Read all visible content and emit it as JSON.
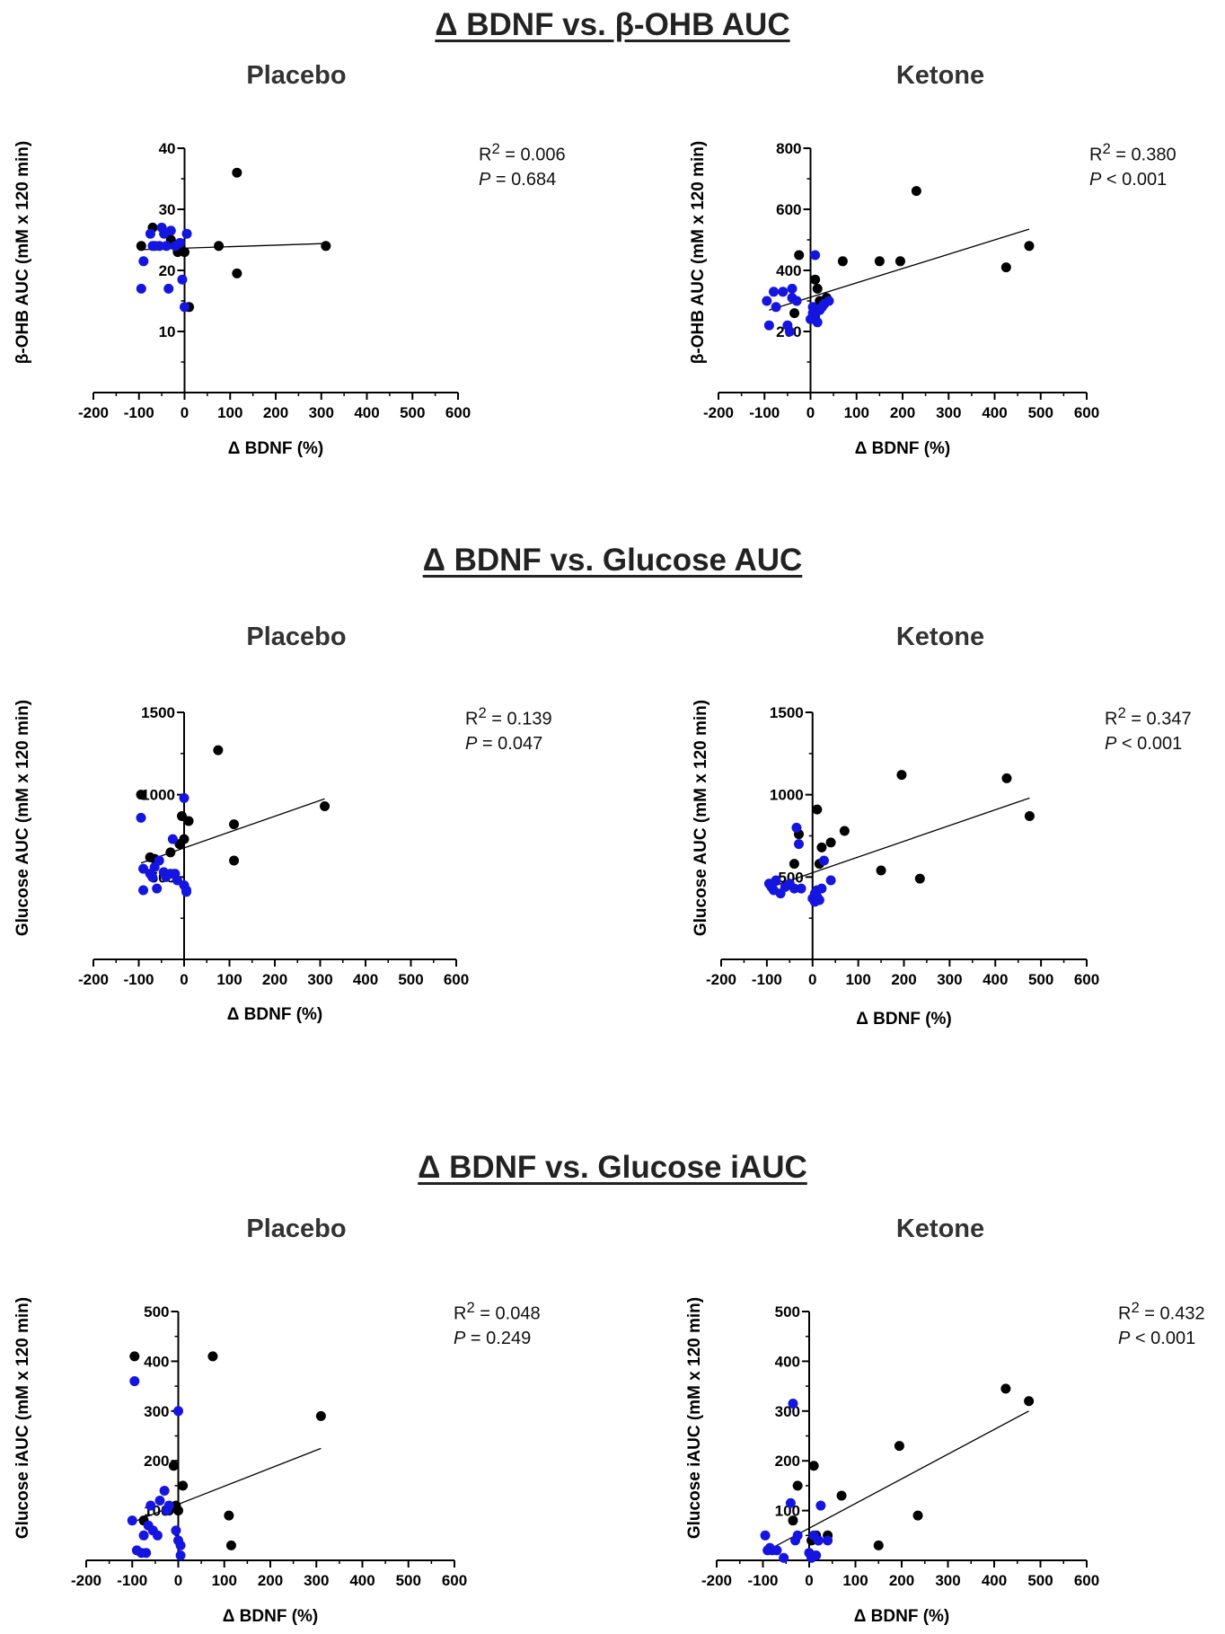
{
  "sections": [
    {
      "title": "Δ BDNF vs. β-OHB AUC"
    },
    {
      "title": "Δ BDNF vs. Glucose AUC"
    },
    {
      "title": "Δ BDNF vs. Glucose iAUC"
    }
  ],
  "colors": {
    "group_a": "#000000",
    "group_b": "#1515e0",
    "axis": "#000000",
    "fit": "#000000"
  },
  "chart_data": [
    {
      "type": "scatter",
      "title": "Placebo",
      "section": "Δ BDNF vs. β-OHB AUC",
      "xlabel": "Δ BDNF (%)",
      "ylabel": "β-OHB AUC (mM x 120 min)",
      "xlim": [
        -200,
        600
      ],
      "ylim": [
        0,
        40
      ],
      "xticks": [
        -200,
        -100,
        0,
        100,
        200,
        300,
        400,
        500,
        600
      ],
      "yticks": [
        10,
        20,
        30,
        40
      ],
      "stats": {
        "r2_label": "R",
        "r2_sup": "2",
        "r2_value": " = 0.006",
        "p_label": "P",
        "p_value": " = 0.684"
      },
      "series": [
        {
          "name": "black",
          "color": "#000000",
          "x": [
            -95,
            -70,
            -30,
            -20,
            -15,
            -10,
            0,
            10,
            75,
            115,
            115,
            310
          ],
          "y": [
            24,
            27,
            25,
            24,
            23,
            24,
            23,
            14,
            24,
            36,
            19.5,
            24
          ]
        },
        {
          "name": "blue",
          "color": "#1515e0",
          "x": [
            -95,
            -90,
            -75,
            -70,
            -65,
            -55,
            -50,
            -45,
            -40,
            -35,
            -30,
            -20,
            -10,
            -5,
            0,
            5
          ],
          "y": [
            17,
            21.5,
            26,
            24,
            24,
            24,
            27,
            26,
            24,
            17,
            26.5,
            24,
            24.5,
            18.5,
            14,
            26
          ]
        }
      ],
      "fit": {
        "x": [
          -95,
          310
        ],
        "y": [
          23.4,
          24.4
        ]
      }
    },
    {
      "type": "scatter",
      "title": "Ketone",
      "section": "Δ BDNF vs. β-OHB AUC",
      "xlabel": "Δ BDNF (%)",
      "ylabel": "β-OHB AUC (mM x 120 min)",
      "xlim": [
        -200,
        600
      ],
      "ylim": [
        0,
        800
      ],
      "xticks": [
        -200,
        -100,
        0,
        100,
        200,
        300,
        400,
        500,
        600
      ],
      "yticks": [
        200,
        400,
        600,
        800
      ],
      "stats": {
        "r2_label": "R",
        "r2_sup": "2",
        "r2_value": " = 0.380",
        "p_label": "P",
        "p_value": " < 0.001"
      },
      "series": [
        {
          "name": "black",
          "color": "#000000",
          "x": [
            -35,
            -25,
            10,
            15,
            20,
            35,
            70,
            150,
            195,
            230,
            425,
            475
          ],
          "y": [
            260,
            450,
            370,
            340,
            300,
            310,
            430,
            430,
            430,
            660,
            410,
            480
          ]
        },
        {
          "name": "blue",
          "color": "#1515e0",
          "x": [
            -95,
            -90,
            -80,
            -75,
            -60,
            -50,
            -45,
            -40,
            -40,
            -30,
            0,
            5,
            5,
            10,
            10,
            15,
            20,
            25,
            30,
            40
          ],
          "y": [
            300,
            220,
            330,
            280,
            330,
            220,
            200,
            340,
            310,
            300,
            240,
            280,
            260,
            250,
            450,
            230,
            270,
            280,
            290,
            300
          ]
        }
      ],
      "fit": {
        "x": [
          -90,
          475
        ],
        "y": [
          270,
          535
        ]
      }
    },
    {
      "type": "scatter",
      "title": "Placebo",
      "section": "Δ BDNF vs. Glucose AUC",
      "xlabel": "Δ BDNF (%)",
      "ylabel": "Glucose AUC (mM x 120 min)",
      "xlim": [
        -200,
        600
      ],
      "ylim": [
        0,
        1500
      ],
      "xticks": [
        -200,
        -100,
        0,
        100,
        200,
        300,
        400,
        500,
        600
      ],
      "yticks": [
        500,
        1000,
        1500
      ],
      "stats": {
        "r2_label": "R",
        "r2_sup": "2",
        "r2_value": " = 0.139",
        "p_label": "P",
        "p_value": " = 0.047"
      },
      "series": [
        {
          "name": "black",
          "color": "#000000",
          "x": [
            -95,
            -75,
            -65,
            -30,
            -10,
            -5,
            0,
            10,
            75,
            110,
            110,
            310
          ],
          "y": [
            1000,
            620,
            610,
            650,
            700,
            870,
            730,
            840,
            1270,
            820,
            600,
            930
          ]
        },
        {
          "name": "blue",
          "color": "#1515e0",
          "x": [
            -95,
            -90,
            -90,
            -75,
            -70,
            -65,
            -60,
            -55,
            -45,
            -40,
            -30,
            -25,
            -20,
            -15,
            0,
            0,
            5,
            5
          ],
          "y": [
            860,
            550,
            420,
            520,
            500,
            560,
            430,
            600,
            530,
            500,
            520,
            730,
            520,
            480,
            980,
            450,
            420,
            410
          ]
        }
      ],
      "fit": {
        "x": [
          -95,
          310
        ],
        "y": [
          585,
          975
        ]
      }
    },
    {
      "type": "scatter",
      "title": "Ketone",
      "section": "Δ BDNF vs. Glucose AUC",
      "xlabel": "Δ BDNF (%)",
      "ylabel": "Glucose AUC (mM x 120 min)",
      "xlim": [
        -200,
        600
      ],
      "ylim": [
        0,
        1500
      ],
      "xticks": [
        -200,
        -100,
        0,
        100,
        200,
        300,
        400,
        500,
        600
      ],
      "yticks": [
        500,
        1000,
        1500
      ],
      "stats": {
        "r2_label": "R",
        "r2_sup": "2",
        "r2_value": " = 0.347",
        "p_label": "P",
        "p_value": " < 0.001"
      },
      "series": [
        {
          "name": "black",
          "color": "#000000",
          "x": [
            -40,
            -30,
            10,
            15,
            20,
            40,
            70,
            150,
            195,
            235,
            425,
            475
          ],
          "y": [
            580,
            760,
            910,
            580,
            680,
            710,
            780,
            540,
            1120,
            490,
            1100,
            870
          ]
        },
        {
          "name": "blue",
          "color": "#1515e0",
          "x": [
            -95,
            -90,
            -85,
            -80,
            -70,
            -60,
            -50,
            -40,
            -35,
            -30,
            -25,
            0,
            5,
            5,
            10,
            10,
            15,
            20,
            25,
            40
          ],
          "y": [
            460,
            440,
            420,
            480,
            400,
            440,
            460,
            430,
            800,
            700,
            430,
            370,
            350,
            400,
            420,
            380,
            360,
            430,
            600,
            480
          ]
        }
      ],
      "fit": {
        "x": [
          -90,
          475
        ],
        "y": [
          440,
          980
        ]
      }
    },
    {
      "type": "scatter",
      "title": "Placebo",
      "section": "Δ BDNF vs. Glucose iAUC",
      "xlabel": "Δ BDNF (%)",
      "ylabel": "Glucose iAUC (mM x 120 min)",
      "xlim": [
        -200,
        600
      ],
      "ylim": [
        0,
        500
      ],
      "xticks": [
        -200,
        -100,
        0,
        100,
        200,
        300,
        400,
        500,
        600
      ],
      "yticks": [
        100,
        200,
        300,
        400,
        500
      ],
      "stats": {
        "r2_label": "R",
        "r2_sup": "2",
        "r2_value": " = 0.048",
        "p_label": "P",
        "p_value": " = 0.249"
      },
      "series": [
        {
          "name": "black",
          "color": "#000000",
          "x": [
            -95,
            -75,
            -20,
            -10,
            -5,
            0,
            10,
            75,
            110,
            115,
            310
          ],
          "y": [
            410,
            80,
            100,
            190,
            110,
            100,
            150,
            410,
            90,
            30,
            290
          ]
        },
        {
          "name": "blue",
          "color": "#1515e0",
          "x": [
            -100,
            -95,
            -90,
            -80,
            -75,
            -70,
            -65,
            -60,
            -55,
            -45,
            -40,
            -30,
            -25,
            -20,
            -5,
            0,
            0,
            5,
            5
          ],
          "y": [
            80,
            360,
            20,
            15,
            50,
            15,
            70,
            110,
            60,
            50,
            120,
            140,
            100,
            110,
            60,
            300,
            40,
            30,
            10
          ]
        }
      ],
      "fit": {
        "x": [
          -90,
          310
        ],
        "y": [
          80,
          225
        ]
      }
    },
    {
      "type": "scatter",
      "title": "Ketone",
      "section": "Δ BDNF vs. Glucose iAUC",
      "xlabel": "Δ BDNF (%)",
      "ylabel": "Glucose iAUC (mM x 120 min)",
      "xlim": [
        -200,
        600
      ],
      "ylim": [
        0,
        500
      ],
      "xticks": [
        -200,
        -100,
        0,
        100,
        200,
        300,
        400,
        500,
        600
      ],
      "yticks": [
        100,
        200,
        300,
        400,
        500
      ],
      "stats": {
        "r2_label": "R",
        "r2_sup": "2",
        "r2_value": " = 0.432",
        "p_label": "P",
        "p_value": " < 0.001"
      },
      "series": [
        {
          "name": "black",
          "color": "#000000",
          "x": [
            -35,
            -25,
            5,
            10,
            15,
            20,
            40,
            70,
            150,
            195,
            235,
            425,
            475
          ],
          "y": [
            80,
            150,
            40,
            190,
            50,
            40,
            50,
            130,
            30,
            230,
            90,
            345,
            320
          ]
        },
        {
          "name": "blue",
          "color": "#1515e0",
          "x": [
            -95,
            -90,
            -85,
            -80,
            -70,
            -55,
            -40,
            -35,
            -30,
            -25,
            0,
            5,
            5,
            10,
            15,
            20,
            25,
            40
          ],
          "y": [
            50,
            20,
            25,
            20,
            20,
            5,
            115,
            315,
            40,
            50,
            15,
            10,
            5,
            50,
            10,
            40,
            110,
            40
          ]
        }
      ],
      "fit": {
        "x": [
          -90,
          475
        ],
        "y": [
          20,
          300
        ]
      }
    }
  ]
}
